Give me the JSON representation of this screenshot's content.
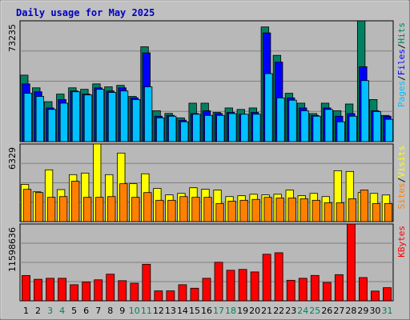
{
  "chart_data": {
    "type": "bar",
    "title": "Daily usage for May 2025",
    "categories": [
      "1",
      "2",
      "3",
      "4",
      "5",
      "6",
      "7",
      "8",
      "9",
      "10",
      "11",
      "12",
      "13",
      "14",
      "15",
      "16",
      "17",
      "18",
      "19",
      "20",
      "21",
      "22",
      "23",
      "24",
      "25",
      "26",
      "27",
      "28",
      "29",
      "30",
      "31"
    ],
    "weekend_days": [
      "3",
      "4",
      "10",
      "11",
      "17",
      "18",
      "24",
      "25",
      "31"
    ],
    "colors": {
      "background": "#c0c0c0",
      "plot": "#b8b8b8",
      "grid": "#808080",
      "title": "#0000c0",
      "hits": "#008060",
      "files": "#0000ff",
      "pages": "#00c0ff",
      "visits": "#ffff00",
      "sites": "#ff8000",
      "kbytes": "#ff0000",
      "weekend_label": "#008060",
      "weekday_label": "#000000"
    },
    "panels": [
      {
        "id": "hits-files-pages",
        "ymax": 73235,
        "ymax_label": "73235",
        "legend": [
          {
            "text": "Pages",
            "color": "#00c0ff"
          },
          {
            "text": "/",
            "color": "#000000"
          },
          {
            "text": "Files",
            "color": "#0000ff"
          },
          {
            "text": "/",
            "color": "#000000"
          },
          {
            "text": "Hits",
            "color": "#008060"
          }
        ],
        "series": [
          {
            "name": "Hits",
            "color": "#008060",
            "values": [
              40300,
              32600,
              24200,
              28800,
              32600,
              31700,
              35000,
              33200,
              34100,
              27400,
              57500,
              18700,
              17100,
              14400,
              23300,
              23300,
              17700,
              20400,
              19500,
              20400,
              69500,
              52300,
              29300,
              23300,
              17000,
              23300,
              18700,
              22800,
              73200,
              25500,
              15900
            ]
          },
          {
            "name": "Files",
            "color": "#0000ff",
            "values": [
              35000,
              30200,
              20400,
              25500,
              30700,
              28800,
              32600,
              30700,
              32600,
              26500,
              53800,
              15400,
              15900,
              13000,
              17000,
              18700,
              17000,
              17700,
              16600,
              17700,
              65900,
              48200,
              26500,
              20400,
              15900,
              20400,
              15400,
              17000,
              45400,
              18700,
              15400
            ]
          },
          {
            "name": "Pages",
            "color": "#00c0ff",
            "values": [
              29300,
              27400,
              19500,
              23300,
              30200,
              28300,
              31700,
              29800,
              30700,
              25500,
              33200,
              14400,
              15400,
              12000,
              16600,
              15900,
              15900,
              17000,
              16600,
              16600,
              41200,
              26500,
              25100,
              18700,
              15400,
              19500,
              12000,
              15400,
              37000,
              18200,
              13500
            ]
          }
        ]
      },
      {
        "id": "visits-sites",
        "ymax": 6329,
        "ymax_label": "6329",
        "legend": [
          {
            "text": "Sites",
            "color": "#ff8000"
          },
          {
            "text": "/",
            "color": "#000000"
          },
          {
            "text": "Visits",
            "color": "#ffff00"
          }
        ],
        "series": [
          {
            "name": "Visits",
            "color": "#ffff00",
            "values": [
              3030,
              2430,
              4220,
              2610,
              3830,
              3960,
              6330,
              3830,
              5590,
              3090,
              3900,
              2700,
              2180,
              2300,
              2760,
              2640,
              2570,
              2040,
              2110,
              2230,
              2180,
              2230,
              2570,
              2110,
              2300,
              2040,
              4150,
              4090,
              2370,
              2300,
              2170
            ]
          },
          {
            "name": "Sites",
            "color": "#ff8000",
            "values": [
              2630,
              2370,
              1980,
              2040,
              3290,
              1980,
              1980,
              2040,
              3090,
              1980,
              2370,
              1740,
              1740,
              2040,
              1980,
              1980,
              1470,
              1670,
              1740,
              1810,
              1980,
              1920,
              1920,
              1860,
              1740,
              1530,
              1530,
              1860,
              2570,
              1470,
              1470
            ]
          }
        ]
      },
      {
        "id": "kbytes",
        "ymax": 11598636,
        "ymax_label": "11598636",
        "legend": [
          {
            "text": "KBytes",
            "color": "#ff0000"
          }
        ],
        "series": [
          {
            "name": "KBytes",
            "color": "#ff0000",
            "values": [
              3820000,
              3250000,
              3400000,
              3400000,
              2430000,
              2830000,
              3170000,
              4020000,
              3040000,
              2660000,
              5520000,
              1500000,
              1500000,
              2430000,
              1900000,
              3400000,
              5820000,
              4610000,
              4740000,
              4360000,
              7030000,
              7260000,
              3100000,
              3400000,
              3830000,
              2770000,
              3950000,
              11600000,
              3510000,
              1470000,
              1980000
            ]
          }
        ]
      }
    ]
  }
}
